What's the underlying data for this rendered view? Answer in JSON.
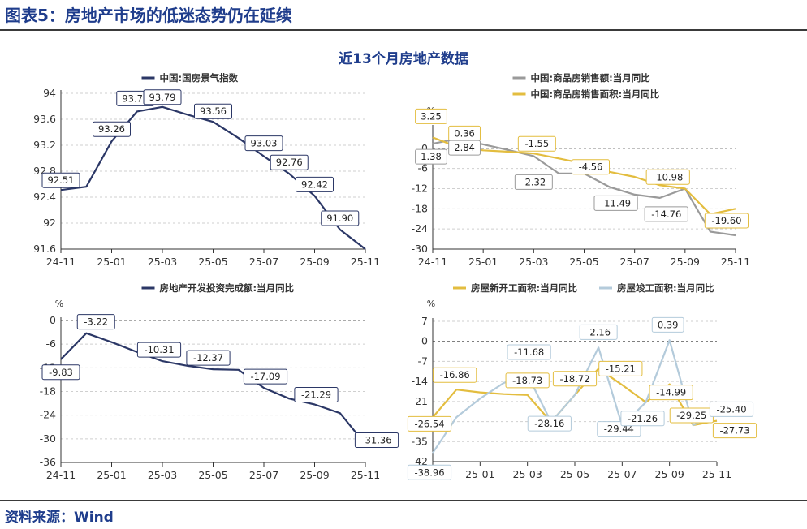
{
  "figure_title": "图表5：房地产市场的低迷态势仍在延续",
  "main_title": "近13个月房地产数据",
  "source": "资料来源：Wind",
  "chart_data": [
    {
      "id": "tl",
      "type": "line",
      "x": [
        "24-11",
        "24-12",
        "25-01",
        "25-02",
        "25-03",
        "25-04",
        "25-05",
        "25-06",
        "25-07",
        "25-08",
        "25-09",
        "25-10",
        "25-11"
      ],
      "xticks": [
        "24-11",
        "25-01",
        "25-03",
        "25-05",
        "25-07",
        "25-09",
        "25-11"
      ],
      "ylim": [
        91.6,
        94
      ],
      "yticks": [
        91.6,
        92,
        92.4,
        92.8,
        93.2,
        93.6,
        94
      ],
      "unit": "",
      "zero_line": false,
      "series": [
        {
          "name": "中国:国房景气指数",
          "color": "#2b3766",
          "values": [
            92.51,
            92.56,
            93.26,
            93.72,
            93.79,
            93.67,
            93.56,
            93.31,
            93.03,
            92.76,
            92.42,
            91.9,
            91.6
          ]
        }
      ],
      "labels": [
        {
          "series": 0,
          "i": 0,
          "text": "92.51"
        },
        {
          "series": 0,
          "i": 2,
          "text": "93.26"
        },
        {
          "series": 0,
          "i": 3,
          "text": "93.72"
        },
        {
          "series": 0,
          "i": 4,
          "text": "93.79"
        },
        {
          "series": 0,
          "i": 6,
          "text": "93.56"
        },
        {
          "series": 0,
          "i": 8,
          "text": "93.03"
        },
        {
          "series": 0,
          "i": 9,
          "text": "92.76"
        },
        {
          "series": 0,
          "i": 10,
          "text": "92.42"
        },
        {
          "series": 0,
          "i": 11,
          "text": "91.90"
        }
      ]
    },
    {
      "id": "tr",
      "type": "line",
      "x": [
        "24-11",
        "24-12",
        "25-01",
        "25-02",
        "25-03",
        "25-04",
        "25-05",
        "25-06",
        "25-07",
        "25-08",
        "25-09",
        "25-10",
        "25-11"
      ],
      "xticks": [
        "24-11",
        "25-01",
        "25-03",
        "25-05",
        "25-07",
        "25-09",
        "25-11"
      ],
      "ylim": [
        -30,
        6
      ],
      "yticks": [
        -30,
        -24,
        -18,
        -12,
        -6,
        0
      ],
      "unit": "%",
      "zero_line": true,
      "series": [
        {
          "name": "中国:商品房销售额:当月同比",
          "color": "#9a9a9a",
          "values": [
            1.38,
            2.84,
            1.2,
            -0.5,
            -2.32,
            -7.5,
            -7.5,
            -11.49,
            -13.8,
            -14.76,
            -12.0,
            -24.8,
            -25.9
          ]
        },
        {
          "name": "中国:商品房销售面积:当月同比",
          "color": "#e3bd3f",
          "values": [
            3.25,
            0.36,
            -0.6,
            -1.0,
            -1.55,
            -3.0,
            -4.56,
            -7.0,
            -8.5,
            -10.98,
            -12.0,
            -19.6,
            -18.0
          ]
        }
      ],
      "labels": [
        {
          "series": 1,
          "i": 0,
          "text": "3.25"
        },
        {
          "series": 1,
          "i": 1,
          "text": "0.36"
        },
        {
          "series": 0,
          "i": 0,
          "text": "1.38"
        },
        {
          "series": 0,
          "i": 1,
          "text": "2.84"
        },
        {
          "series": 1,
          "i": 4,
          "text": "-1.55"
        },
        {
          "series": 0,
          "i": 4,
          "text": "-2.32"
        },
        {
          "series": 1,
          "i": 6,
          "text": "-4.56"
        },
        {
          "series": 0,
          "i": 7,
          "text": "-11.49"
        },
        {
          "series": 1,
          "i": 9,
          "text": "-10.98"
        },
        {
          "series": 0,
          "i": 9,
          "text": "-14.76"
        },
        {
          "series": 1,
          "i": 11,
          "text": "-19.60"
        }
      ]
    },
    {
      "id": "bl",
      "type": "line",
      "x": [
        "24-11",
        "24-12",
        "25-01",
        "25-02",
        "25-03",
        "25-04",
        "25-05",
        "25-06",
        "25-07",
        "25-08",
        "25-09",
        "25-10",
        "25-11"
      ],
      "xticks": [
        "24-11",
        "25-01",
        "25-03",
        "25-05",
        "25-07",
        "25-09",
        "25-11"
      ],
      "ylim": [
        -36,
        0
      ],
      "yticks": [
        -36,
        -30,
        -24,
        -18,
        -12,
        -6,
        0
      ],
      "unit": "%",
      "zero_line": true,
      "series": [
        {
          "name": "房地产开发投资完成额:当月同比",
          "color": "#2b3766",
          "values": [
            -9.83,
            -3.22,
            -5.5,
            -8.0,
            -10.31,
            -11.5,
            -12.37,
            -12.5,
            -17.09,
            -19.8,
            -21.29,
            -23.5,
            -31.36
          ]
        }
      ],
      "labels": [
        {
          "series": 0,
          "i": 0,
          "text": "-9.83"
        },
        {
          "series": 0,
          "i": 1,
          "text": "-3.22"
        },
        {
          "series": 0,
          "i": 4,
          "text": "-10.31"
        },
        {
          "series": 0,
          "i": 6,
          "text": "-12.37"
        },
        {
          "series": 0,
          "i": 8,
          "text": "-17.09"
        },
        {
          "series": 0,
          "i": 10,
          "text": "-21.29"
        },
        {
          "series": 0,
          "i": 12,
          "text": "-31.36"
        }
      ]
    },
    {
      "id": "br",
      "type": "line",
      "x": [
        "24-11",
        "24-12",
        "25-01",
        "25-02",
        "25-03",
        "25-04",
        "25-05",
        "25-06",
        "25-07",
        "25-08",
        "25-09",
        "25-10",
        "25-11"
      ],
      "xticks": [
        "24-11",
        "25-01",
        "25-03",
        "25-05",
        "25-07",
        "25-09",
        "25-11"
      ],
      "ylim": [
        -42,
        7
      ],
      "yticks": [
        -42,
        -35,
        -28,
        -21,
        -14,
        -7,
        0,
        7
      ],
      "unit": "%",
      "zero_line": true,
      "series": [
        {
          "name": "房屋新开工面积:当月同比",
          "color": "#e3bd3f",
          "values": [
            -26.54,
            -16.86,
            -17.8,
            -18.4,
            -18.73,
            -28.16,
            -18.72,
            -9.5,
            -15.21,
            -21.26,
            -14.99,
            -29.25,
            -27.73
          ]
        },
        {
          "name": "房屋竣工面积:当月同比",
          "color": "#b4cbdb",
          "values": [
            -38.96,
            -26.5,
            -20.0,
            -14.5,
            -11.68,
            -28.16,
            -18.72,
            -2.16,
            -29.44,
            -21.26,
            0.39,
            -29.25,
            -25.4
          ]
        }
      ],
      "labels": [
        {
          "series": 0,
          "i": 0,
          "text": "-26.54"
        },
        {
          "series": 1,
          "i": 0,
          "text": "-38.96"
        },
        {
          "series": 0,
          "i": 1,
          "text": "-16.86"
        },
        {
          "series": 1,
          "i": 4,
          "text": "-11.68"
        },
        {
          "series": 0,
          "i": 4,
          "text": "-18.73"
        },
        {
          "series": 1,
          "i": 5,
          "text": "-28.16"
        },
        {
          "series": 0,
          "i": 6,
          "text": "-18.72"
        },
        {
          "series": 1,
          "i": 7,
          "text": "-2.16"
        },
        {
          "series": 0,
          "i": 8,
          "text": "-15.21"
        },
        {
          "series": 1,
          "i": 8,
          "text": "-29.44"
        },
        {
          "series": 1,
          "i": 9,
          "text": "-21.26"
        },
        {
          "series": 1,
          "i": 10,
          "text": "0.39"
        },
        {
          "series": 0,
          "i": 10,
          "text": "-14.99"
        },
        {
          "series": 0,
          "i": 11,
          "text": "-29.25"
        },
        {
          "series": 1,
          "i": 12,
          "text": "-25.40"
        },
        {
          "series": 0,
          "i": 12,
          "text": "-27.73"
        }
      ]
    }
  ]
}
